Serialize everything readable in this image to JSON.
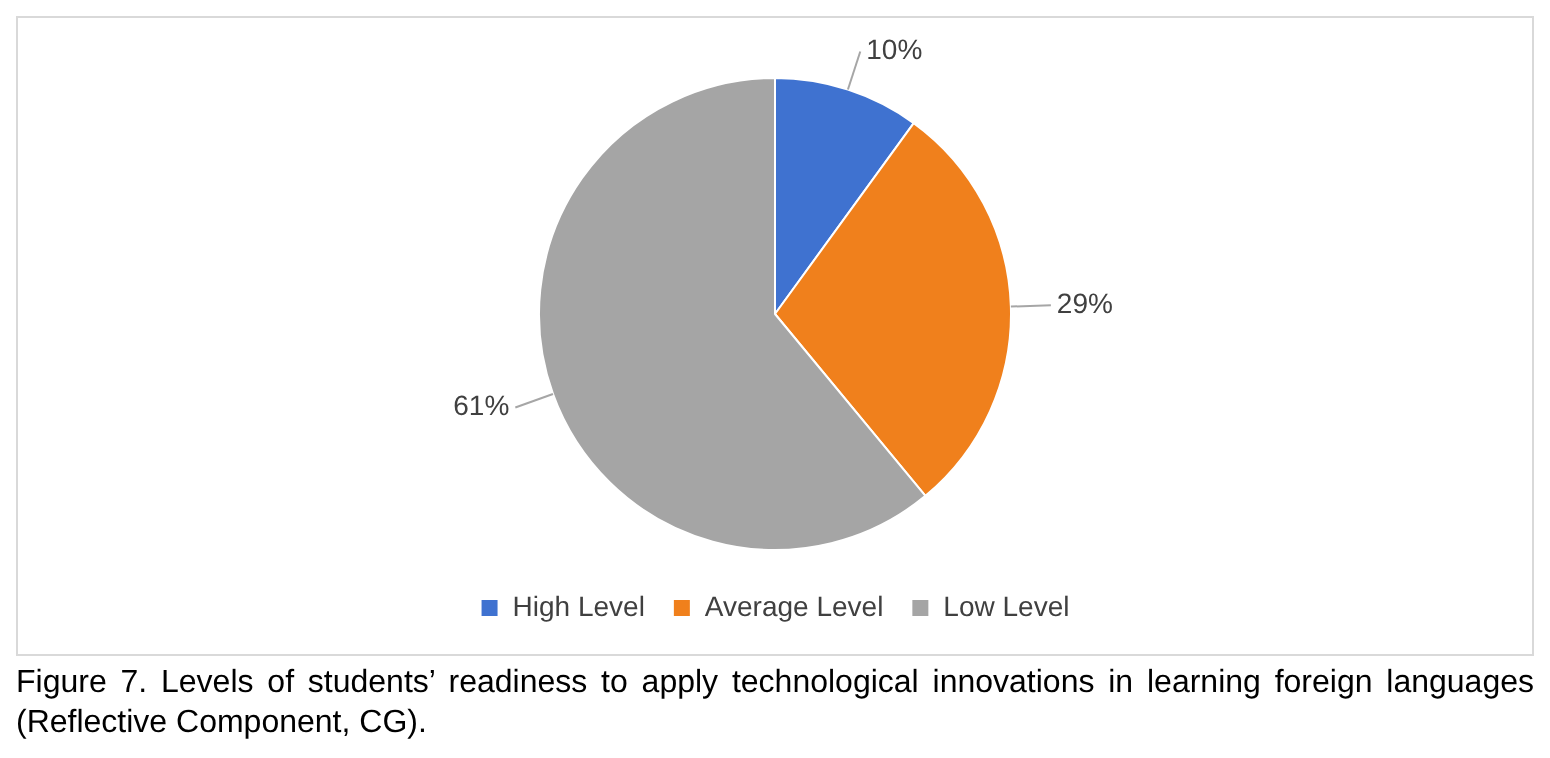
{
  "chart_data": {
    "type": "pie",
    "categories": [
      "High Level",
      "Average Level",
      "Low Level"
    ],
    "values": [
      10,
      29,
      61
    ],
    "value_labels": [
      "10%",
      "29%",
      "61%"
    ],
    "colors": [
      "#3f72d0",
      "#f0801c",
      "#a5a5a5"
    ],
    "legend": "bottom",
    "annotations": [
      "Figure 7. Levels of students’ readiness to apply technological innovations in learning foreign languages (Reflective Component, CG)."
    ]
  }
}
